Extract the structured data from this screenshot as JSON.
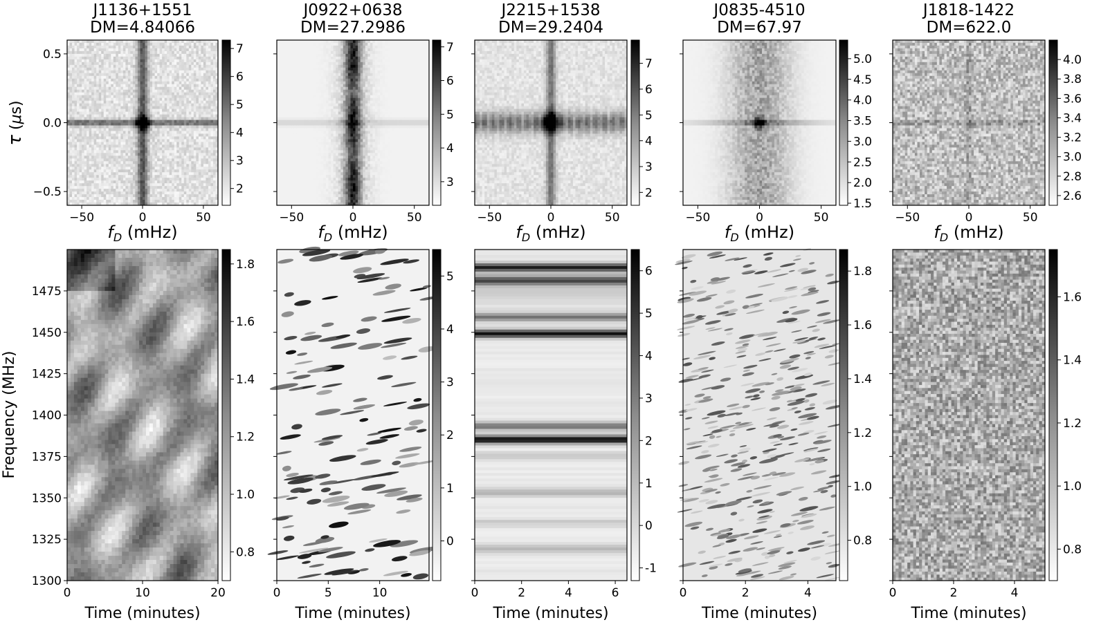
{
  "chart_data": [
    {
      "type": "heatmap",
      "kind": "secondary_spectrum",
      "title": "J1136+1551",
      "subtitle": "DM=4.84066",
      "xlabel": "f_D (mHz)",
      "ylabel": "τ (μs)",
      "xlim": [
        -62,
        62
      ],
      "ylim": [
        -0.6,
        0.6
      ],
      "xticks": [
        -50,
        0,
        50
      ],
      "yticks": [
        -0.5,
        0.0,
        0.5
      ],
      "colorbar": {
        "min": 1.4,
        "max": 7.3,
        "ticks": [
          2,
          3,
          4,
          5,
          6,
          7
        ]
      },
      "colormap": "gray_r"
    },
    {
      "type": "heatmap",
      "kind": "secondary_spectrum",
      "title": "J0922+0638",
      "subtitle": "DM=27.2986",
      "xlabel": "f_D (mHz)",
      "xlim": [
        -62,
        62
      ],
      "ylim": [
        -0.6,
        0.6
      ],
      "xticks": [
        -50,
        0,
        50
      ],
      "colorbar": {
        "min": 2.3,
        "max": 7.2,
        "ticks": [
          3,
          4,
          5,
          6,
          7
        ]
      },
      "colormap": "gray_r"
    },
    {
      "type": "heatmap",
      "kind": "secondary_spectrum",
      "title": "J2215+1538",
      "subtitle": "DM=29.2404",
      "xlabel": "f_D (mHz)",
      "xlim": [
        -62,
        62
      ],
      "ylim": [
        -0.6,
        0.6
      ],
      "xticks": [
        -50,
        0,
        50
      ],
      "colorbar": {
        "min": 1.5,
        "max": 7.9,
        "ticks": [
          2,
          3,
          4,
          5,
          6,
          7
        ]
      },
      "colormap": "gray_r"
    },
    {
      "type": "heatmap",
      "kind": "secondary_spectrum",
      "title": "J0835-4510",
      "subtitle": "DM=67.97",
      "xlabel": "f_D (mHz)",
      "xlim": [
        -62,
        62
      ],
      "ylim": [
        -0.6,
        0.6
      ],
      "xticks": [
        -50,
        0,
        50
      ],
      "colorbar": {
        "min": 1.45,
        "max": 5.45,
        "ticks": [
          "1.5",
          "2.0",
          "2.5",
          "3.0",
          "3.5",
          "4.0",
          "4.5",
          "5.0"
        ]
      },
      "colormap": "gray_r"
    },
    {
      "type": "heatmap",
      "kind": "secondary_spectrum",
      "title": "J1818-1422",
      "subtitle": "DM=622.0",
      "xlabel": "f_D (mHz)",
      "xlim": [
        -62,
        62
      ],
      "ylim": [
        -0.6,
        0.6
      ],
      "xticks": [
        -50,
        0,
        50
      ],
      "colorbar": {
        "min": 2.5,
        "max": 4.2,
        "ticks": [
          "2.6",
          "2.8",
          "3.0",
          "3.2",
          "3.4",
          "3.6",
          "3.8",
          "4.0"
        ]
      },
      "colormap": "gray_r"
    },
    {
      "type": "heatmap",
      "kind": "dynamic_spectrum",
      "xlabel": "Time (minutes)",
      "ylabel": "Frequency (MHz)",
      "xlim": [
        0,
        20
      ],
      "ylim": [
        1300,
        1500
      ],
      "xticks": [
        0,
        10,
        20
      ],
      "yticks": [
        1300,
        1325,
        1350,
        1375,
        1400,
        1425,
        1450,
        1475
      ],
      "colorbar": {
        "min": 0.7,
        "max": 1.85,
        "ticks": [
          "0.8",
          "1.0",
          "1.2",
          "1.4",
          "1.6",
          "1.8"
        ]
      },
      "colormap": "gray_r"
    },
    {
      "type": "heatmap",
      "kind": "dynamic_spectrum",
      "xlabel": "Time (minutes)",
      "xlim": [
        0,
        14.8
      ],
      "ylim": [
        1300,
        1500
      ],
      "xticks": [
        0,
        5,
        10
      ],
      "colorbar": {
        "min": -0.75,
        "max": 5.5,
        "ticks": [
          0,
          1,
          2,
          3,
          4,
          5
        ]
      },
      "colormap": "gray_r"
    },
    {
      "type": "heatmap",
      "kind": "dynamic_spectrum",
      "xlabel": "Time (minutes)",
      "xlim": [
        0,
        6.5
      ],
      "ylim": [
        1300,
        1500
      ],
      "xticks": [
        0,
        2,
        4,
        6
      ],
      "colorbar": {
        "min": -1.3,
        "max": 6.5,
        "ticks": [
          -1,
          0,
          1,
          2,
          3,
          4,
          5,
          6
        ]
      },
      "colormap": "gray_r"
    },
    {
      "type": "heatmap",
      "kind": "dynamic_spectrum",
      "xlabel": "Time (minutes)",
      "xlim": [
        0,
        4.9
      ],
      "ylim": [
        1300,
        1500
      ],
      "xticks": [
        0,
        2,
        4
      ],
      "colorbar": {
        "min": 0.65,
        "max": 1.88,
        "ticks": [
          "0.8",
          "1.0",
          "1.2",
          "1.4",
          "1.6",
          "1.8"
        ]
      },
      "colormap": "gray_r"
    },
    {
      "type": "heatmap",
      "kind": "dynamic_spectrum",
      "xlabel": "Time (minutes)",
      "xlim": [
        0,
        5.0
      ],
      "ylim": [
        1300,
        1500
      ],
      "xticks": [
        0,
        2,
        4
      ],
      "colorbar": {
        "min": 0.7,
        "max": 1.75,
        "ticks": [
          "0.8",
          "1.0",
          "1.2",
          "1.4",
          "1.6"
        ]
      },
      "colormap": "gray_r"
    }
  ]
}
